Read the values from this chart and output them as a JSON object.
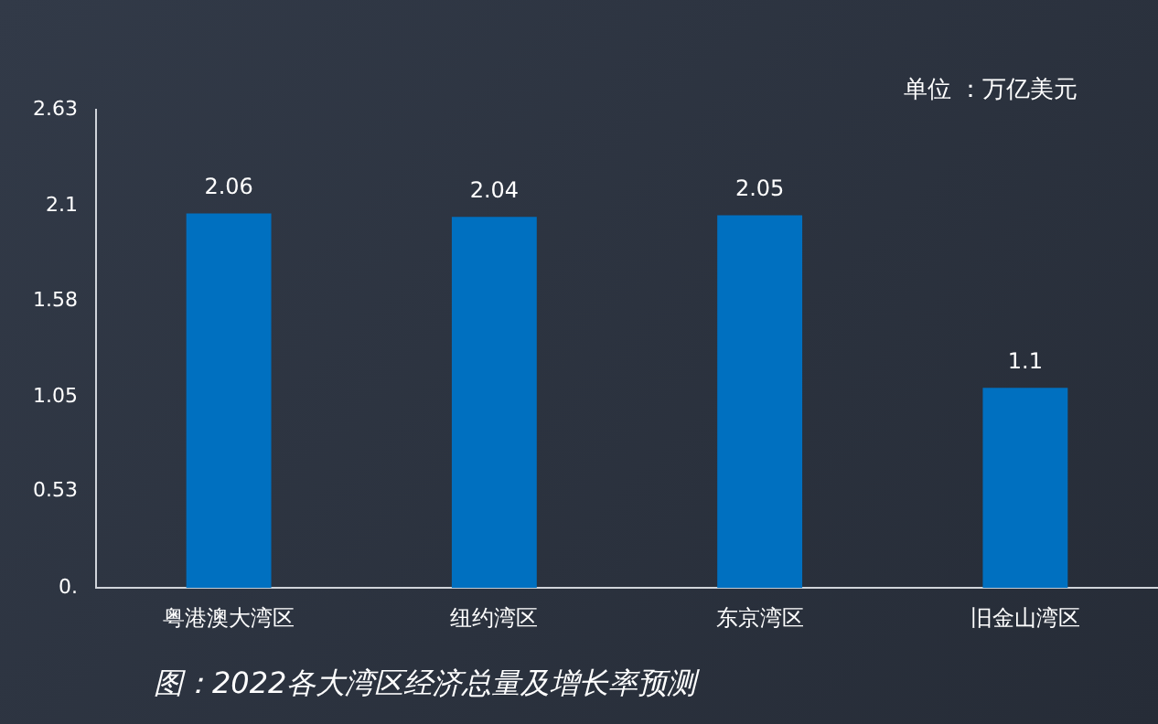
{
  "chart_data": {
    "type": "bar",
    "categories": [
      "粤港澳大湾区",
      "纽约湾区",
      "东京湾区",
      "旧金山湾区"
    ],
    "values": [
      2.06,
      2.04,
      2.05,
      1.1
    ],
    "color": "#0070c0",
    "ylim": [
      0,
      2.63
    ],
    "yticks": [
      {
        "value": 0,
        "label": "0."
      },
      0.53,
      1.05,
      1.58,
      2.1,
      2.63
    ],
    "grid": false,
    "legend": false,
    "data_labels": true,
    "annotations": [
      "单位 ：万亿美元",
      "图：2022各大湾区经济总量及增长率预测"
    ]
  }
}
